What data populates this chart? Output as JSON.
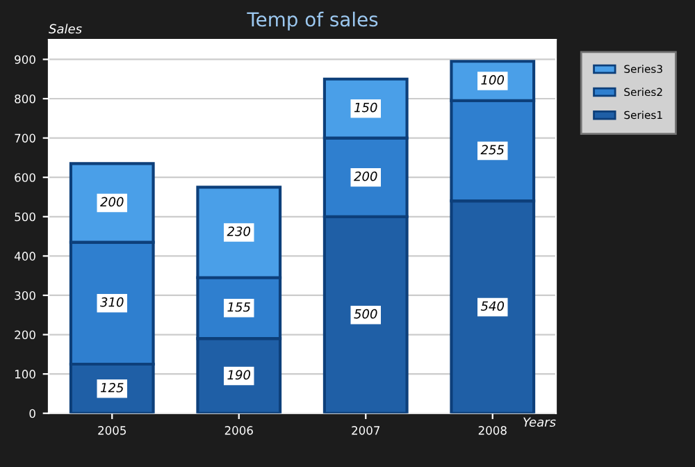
{
  "chart_data": {
    "type": "bar",
    "title": "Temp of sales",
    "xlabel": "Years",
    "ylabel": "Sales",
    "categories": [
      "2005",
      "2006",
      "2007",
      "2008"
    ],
    "stacked": true,
    "series": [
      {
        "name": "Series1",
        "color": "#1f5fa6",
        "values": [
          125,
          190,
          500,
          540
        ]
      },
      {
        "name": "Series2",
        "color": "#2f7fcf",
        "values": [
          310,
          155,
          200,
          255
        ]
      },
      {
        "name": "Series3",
        "color": "#4a9fe8",
        "values": [
          200,
          230,
          150,
          100
        ]
      }
    ],
    "ylim": [
      0,
      950
    ],
    "yticks": [
      0,
      100,
      200,
      300,
      400,
      500,
      600,
      700,
      800,
      900
    ],
    "grid": "y",
    "legend": "top right",
    "data_labels": true
  }
}
